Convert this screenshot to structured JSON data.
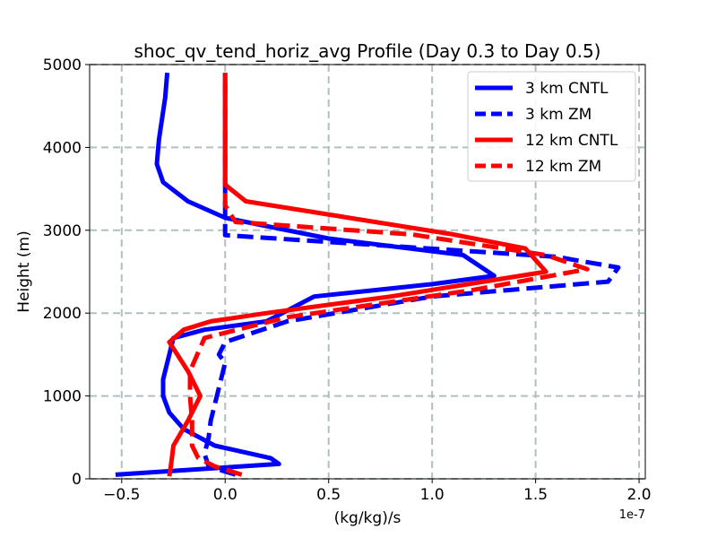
{
  "chart_data": {
    "type": "line",
    "title": "shoc_qv_tend_horiz_avg Profile (Day 0.3 to Day 0.5)",
    "xlabel": "(kg/kg)/s",
    "ylabel": "Height (m)",
    "x_scale_label": "1e-7",
    "xlim": [
      -0.655,
      2.03
    ],
    "ylim": [
      0,
      5000
    ],
    "x_ticks": [
      -0.5,
      0.0,
      0.5,
      1.0,
      1.5,
      2.0
    ],
    "x_tick_labels": [
      "−0.5",
      "0.0",
      "0.5",
      "1.0",
      "1.5",
      "2.0"
    ],
    "y_ticks": [
      0,
      1000,
      2000,
      3000,
      4000,
      5000
    ],
    "y_tick_labels": [
      "0",
      "1000",
      "2000",
      "3000",
      "4000",
      "5000"
    ],
    "grid": true,
    "legend_position": "top-right",
    "series": [
      {
        "name": "3 km CNTL",
        "color": "#0000ff",
        "dash": "solid",
        "x": [
          -0.53,
          0.26,
          0.22,
          -0.05,
          -0.2,
          -0.27,
          -0.3,
          -0.3,
          -0.27,
          -0.25,
          -0.1,
          0.2,
          0.43,
          1.0,
          1.3,
          1.15,
          0.5,
          0.3,
          0.0,
          -0.18,
          -0.3,
          -0.33,
          -0.32,
          -0.29,
          -0.28
        ],
        "y": [
          50,
          180,
          250,
          400,
          600,
          800,
          1000,
          1200,
          1500,
          1700,
          1800,
          1900,
          2200,
          2350,
          2450,
          2700,
          2900,
          3000,
          3150,
          3350,
          3580,
          3800,
          4100,
          4600,
          4900
        ]
      },
      {
        "name": "3 km ZM",
        "color": "#0000ff",
        "dash": "dashed",
        "x": [
          0.05,
          -0.08,
          -0.1,
          -0.08,
          -0.07,
          -0.05,
          -0.03,
          0.0,
          -0.03,
          0.0,
          0.3,
          1.0,
          1.85,
          1.9,
          1.6,
          0.0,
          0.0,
          0.0,
          0.0,
          0.0
        ],
        "y": [
          50,
          150,
          300,
          500,
          700,
          900,
          1100,
          1400,
          1500,
          1650,
          1900,
          2200,
          2380,
          2550,
          2680,
          2940,
          3100,
          3500,
          4000,
          4900
        ]
      },
      {
        "name": "12 km CNTL",
        "color": "#ff0000",
        "dash": "solid",
        "x": [
          -0.27,
          -0.26,
          -0.25,
          -0.18,
          -0.12,
          -0.18,
          -0.27,
          -0.2,
          -0.07,
          0.2,
          0.8,
          1.55,
          1.45,
          1.1,
          0.1,
          0.0,
          0.0,
          0.0
        ],
        "y": [
          30,
          200,
          400,
          700,
          1000,
          1300,
          1650,
          1800,
          1900,
          2000,
          2200,
          2500,
          2780,
          2950,
          3350,
          3550,
          4000,
          4900
        ]
      },
      {
        "name": "12 km ZM",
        "color": "#ff0000",
        "dash": "dashed",
        "x": [
          0.08,
          -0.05,
          -0.13,
          -0.16,
          -0.16,
          -0.17,
          -0.17,
          -0.1,
          0.3,
          1.2,
          1.75,
          1.55,
          0.9,
          0.05,
          0.0,
          0.0,
          0.0
        ],
        "y": [
          50,
          150,
          250,
          400,
          700,
          1000,
          1300,
          1700,
          1950,
          2280,
          2530,
          2700,
          2950,
          3100,
          3300,
          4000,
          4900
        ]
      }
    ]
  }
}
